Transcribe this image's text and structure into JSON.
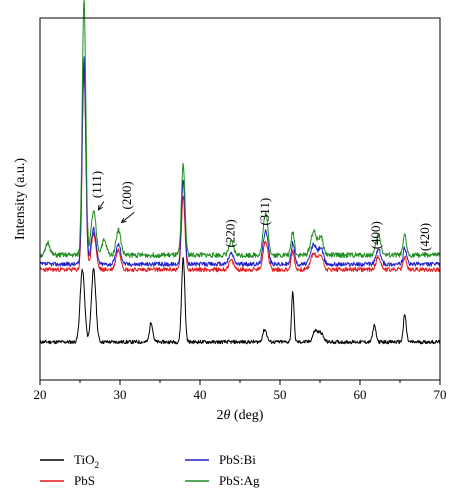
{
  "chart_data": {
    "type": "line",
    "xlabel_prefix": "2",
    "xlabel_symbol": "θ",
    "xlabel_suffix": " (deg)",
    "ylabel": "Intensity (a.u.)",
    "xlim": [
      20,
      70
    ],
    "ylim": [
      0,
      10
    ],
    "y_ticks_shown": false,
    "x_ticks": [
      {
        "value": 20,
        "label": "20"
      },
      {
        "value": 30,
        "label": "30"
      },
      {
        "value": 40,
        "label": "40"
      },
      {
        "value": 50,
        "label": "50"
      },
      {
        "value": 60,
        "label": "60"
      },
      {
        "value": 70,
        "label": "70"
      }
    ],
    "legend_placement": "below-plot",
    "series": [
      {
        "name": "TiO2",
        "name_base": "TiO",
        "name_sub": "2",
        "color": "#000000",
        "baseline": 1.05,
        "noise": 0.05,
        "seed": 11,
        "peaks": [
          [
            25.3,
            2.0,
            0.28
          ],
          [
            26.7,
            2.0,
            0.28
          ],
          [
            33.9,
            0.55,
            0.2
          ],
          [
            37.9,
            2.35,
            0.2
          ],
          [
            48.1,
            0.35,
            0.25
          ],
          [
            51.6,
            1.4,
            0.15
          ],
          [
            54.4,
            0.3,
            0.3
          ],
          [
            55.1,
            0.25,
            0.3
          ],
          [
            61.8,
            0.45,
            0.2
          ],
          [
            65.6,
            0.75,
            0.18
          ]
        ]
      },
      {
        "name": "PbS",
        "color": "#e41a1c",
        "baseline": 3.05,
        "noise": 0.06,
        "seed": 23,
        "peaks": [
          [
            25.5,
            5.55,
            0.22
          ],
          [
            26.7,
            1.0,
            0.3
          ],
          [
            29.8,
            0.55,
            0.3
          ],
          [
            37.9,
            2.0,
            0.22
          ],
          [
            43.9,
            0.25,
            0.3
          ],
          [
            48.2,
            0.8,
            0.3
          ],
          [
            51.6,
            0.5,
            0.2
          ],
          [
            54.2,
            0.45,
            0.35
          ],
          [
            55.1,
            0.4,
            0.3
          ],
          [
            62.3,
            0.35,
            0.3
          ],
          [
            65.6,
            0.35,
            0.2
          ]
        ]
      },
      {
        "name": "PbS:Bi",
        "color": "#1f1fcc",
        "baseline": 3.2,
        "noise": 0.06,
        "seed": 37,
        "peaks": [
          [
            25.5,
            5.7,
            0.22
          ],
          [
            26.7,
            1.0,
            0.3
          ],
          [
            29.8,
            0.55,
            0.3
          ],
          [
            37.9,
            2.3,
            0.22
          ],
          [
            43.9,
            0.3,
            0.3
          ],
          [
            48.2,
            0.95,
            0.3
          ],
          [
            51.6,
            0.6,
            0.2
          ],
          [
            54.2,
            0.55,
            0.35
          ],
          [
            55.1,
            0.45,
            0.3
          ],
          [
            62.3,
            0.4,
            0.3
          ],
          [
            65.6,
            0.45,
            0.2
          ]
        ]
      },
      {
        "name": "PbS:Ag",
        "color": "#1e8c1e",
        "baseline": 3.45,
        "noise": 0.07,
        "seed": 51,
        "peaks": [
          [
            21.0,
            0.35,
            0.25
          ],
          [
            25.5,
            7.1,
            0.22
          ],
          [
            26.7,
            1.2,
            0.3
          ],
          [
            28.0,
            0.4,
            0.3
          ],
          [
            29.8,
            0.7,
            0.3
          ],
          [
            37.9,
            2.5,
            0.22
          ],
          [
            43.9,
            0.35,
            0.3
          ],
          [
            48.2,
            1.15,
            0.3
          ],
          [
            51.6,
            0.65,
            0.2
          ],
          [
            54.2,
            0.65,
            0.35
          ],
          [
            55.1,
            0.5,
            0.3
          ],
          [
            62.3,
            0.55,
            0.3
          ],
          [
            65.6,
            0.55,
            0.2
          ]
        ]
      }
    ],
    "annotations": [
      {
        "text": "(111)",
        "x": 27.6,
        "y": 5.4,
        "arrow_to": [
          27.3,
          4.7
        ],
        "rotate": -90
      },
      {
        "text": "(200)",
        "x": 31.4,
        "y": 5.1,
        "arrow_to": [
          30.2,
          4.35
        ],
        "rotate": -90
      },
      {
        "text": "(220)",
        "x": 44.3,
        "y": 4.05,
        "rotate": -90
      },
      {
        "text": "(311)",
        "x": 48.6,
        "y": 4.65,
        "rotate": -90
      },
      {
        "text": "(400)",
        "x": 62.5,
        "y": 4.0,
        "rotate": -90
      },
      {
        "text": "(420)",
        "x": 68.6,
        "y": 3.95,
        "rotate": -90
      }
    ]
  }
}
